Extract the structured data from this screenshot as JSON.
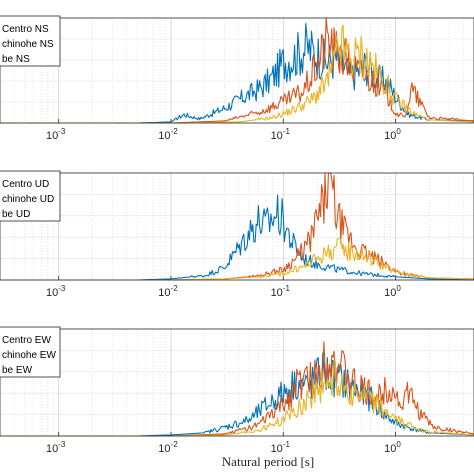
{
  "chart_data": [
    {
      "type": "line",
      "panel": "NS",
      "xscale": "log",
      "xlim": [
        0.0003,
        5
      ],
      "grid": true,
      "legend": {
        "position": "top-left",
        "entries": [
          "Centro NS",
          "chinohe NS",
          "be NS"
        ]
      },
      "xticks": [
        "10^-3",
        "10^-2",
        "10^-1",
        "10^0"
      ],
      "series": [
        {
          "name": "Centro NS",
          "color": "#0072BD",
          "x": [
            0.0003,
            0.001,
            0.005,
            0.01,
            0.013,
            0.018,
            0.03,
            0.045,
            0.06,
            0.075,
            0.09,
            0.1,
            0.13,
            0.16,
            0.2,
            0.24,
            0.3,
            0.4,
            0.55,
            0.7,
            0.85,
            1.0,
            1.3,
            2.0,
            5.0
          ],
          "y": [
            0.0,
            0.0,
            0.0,
            0.01,
            0.08,
            0.04,
            0.14,
            0.25,
            0.32,
            0.4,
            0.5,
            0.58,
            0.64,
            0.72,
            0.66,
            0.58,
            0.62,
            0.45,
            0.55,
            0.42,
            0.38,
            0.25,
            0.08,
            0.03,
            0.02
          ]
        },
        {
          "name": "chinohe NS",
          "color": "#D95319",
          "x": [
            0.0003,
            0.01,
            0.03,
            0.06,
            0.1,
            0.15,
            0.2,
            0.25,
            0.28,
            0.35,
            0.45,
            0.6,
            0.8,
            1.0,
            1.2,
            1.4,
            2.0,
            5.0
          ],
          "y": [
            0.0,
            0.0,
            0.02,
            0.1,
            0.2,
            0.3,
            0.55,
            0.82,
            0.7,
            0.62,
            0.5,
            0.42,
            0.3,
            0.1,
            0.05,
            0.32,
            0.05,
            0.02
          ]
        },
        {
          "name": "be NS",
          "color": "#EDB120",
          "x": [
            0.0003,
            0.01,
            0.04,
            0.08,
            0.12,
            0.18,
            0.25,
            0.32,
            0.4,
            0.5,
            0.6,
            0.8,
            1.0,
            1.5,
            2.0,
            5.0
          ],
          "y": [
            0.0,
            0.0,
            0.01,
            0.05,
            0.12,
            0.22,
            0.4,
            0.75,
            0.6,
            0.65,
            0.55,
            0.4,
            0.22,
            0.08,
            0.03,
            0.01
          ]
        }
      ]
    },
    {
      "type": "line",
      "panel": "UD",
      "xscale": "log",
      "xlim": [
        0.0003,
        5
      ],
      "grid": true,
      "legend": {
        "position": "top-left",
        "entries": [
          "Centro UD",
          "chinohe UD",
          "be UD"
        ]
      },
      "xticks": [
        "10^-3",
        "10^-2",
        "10^-1",
        "10^0"
      ],
      "series": [
        {
          "name": "Centro UD",
          "color": "#0072BD",
          "x": [
            0.0003,
            0.001,
            0.005,
            0.01,
            0.015,
            0.02,
            0.03,
            0.04,
            0.05,
            0.06,
            0.07,
            0.08,
            0.09,
            0.1,
            0.12,
            0.15,
            0.2,
            0.3,
            0.5,
            1.0,
            2.0,
            5.0
          ],
          "y": [
            0.0,
            0.0,
            0.0,
            0.01,
            0.03,
            0.04,
            0.12,
            0.3,
            0.45,
            0.55,
            0.5,
            0.58,
            0.62,
            0.55,
            0.35,
            0.2,
            0.15,
            0.1,
            0.06,
            0.03,
            0.01,
            0.0
          ]
        },
        {
          "name": "chinohe UD",
          "color": "#D95319",
          "x": [
            0.0003,
            0.01,
            0.03,
            0.06,
            0.1,
            0.13,
            0.17,
            0.2,
            0.23,
            0.26,
            0.3,
            0.35,
            0.45,
            0.6,
            0.8,
            1.0,
            1.3,
            2.0,
            5.0
          ],
          "y": [
            0.0,
            0.0,
            0.01,
            0.04,
            0.1,
            0.2,
            0.35,
            0.55,
            0.72,
            0.98,
            0.6,
            0.45,
            0.3,
            0.22,
            0.15,
            0.08,
            0.05,
            0.02,
            0.01
          ]
        },
        {
          "name": "be UD",
          "color": "#EDB120",
          "x": [
            0.0003,
            0.01,
            0.03,
            0.06,
            0.1,
            0.15,
            0.2,
            0.3,
            0.45,
            0.6,
            0.8,
            1.0,
            1.5,
            2.0,
            5.0
          ],
          "y": [
            0.0,
            0.0,
            0.01,
            0.03,
            0.06,
            0.12,
            0.2,
            0.3,
            0.25,
            0.2,
            0.12,
            0.08,
            0.04,
            0.02,
            0.01
          ]
        }
      ]
    },
    {
      "type": "line",
      "panel": "EW",
      "xscale": "log",
      "xlim": [
        0.0003,
        5
      ],
      "grid": true,
      "legend": {
        "position": "top-left",
        "entries": [
          "Centro EW",
          "chinohe EW",
          "be EW"
        ]
      },
      "xticks": [
        "10^-3",
        "10^-2",
        "10^-1",
        "10^0"
      ],
      "xlabel": "Natural period [s]",
      "series": [
        {
          "name": "Centro EW",
          "color": "#0072BD",
          "x": [
            0.0003,
            0.001,
            0.005,
            0.01,
            0.02,
            0.03,
            0.05,
            0.07,
            0.1,
            0.13,
            0.17,
            0.22,
            0.28,
            0.35,
            0.45,
            0.6,
            0.8,
            1.0,
            1.5,
            2.0,
            5.0
          ],
          "y": [
            0.0,
            0.0,
            0.0,
            0.01,
            0.03,
            0.08,
            0.15,
            0.28,
            0.4,
            0.5,
            0.45,
            0.6,
            0.55,
            0.5,
            0.42,
            0.35,
            0.2,
            0.12,
            0.06,
            0.03,
            0.01
          ]
        },
        {
          "name": "chinohe EW",
          "color": "#D95319",
          "x": [
            0.0003,
            0.01,
            0.03,
            0.06,
            0.1,
            0.14,
            0.2,
            0.25,
            0.3,
            0.4,
            0.55,
            0.7,
            0.9,
            1.1,
            1.3,
            1.7,
            2.2,
            5.0
          ],
          "y": [
            0.0,
            0.0,
            0.02,
            0.1,
            0.3,
            0.5,
            0.55,
            0.82,
            0.68,
            0.5,
            0.4,
            0.36,
            0.48,
            0.3,
            0.4,
            0.2,
            0.08,
            0.02
          ]
        },
        {
          "name": "be EW",
          "color": "#EDB120",
          "x": [
            0.0003,
            0.01,
            0.03,
            0.06,
            0.1,
            0.15,
            0.2,
            0.3,
            0.4,
            0.55,
            0.7,
            1.0,
            1.3,
            2.0,
            5.0
          ],
          "y": [
            0.0,
            0.0,
            0.01,
            0.05,
            0.15,
            0.3,
            0.45,
            0.55,
            0.4,
            0.35,
            0.28,
            0.15,
            0.1,
            0.04,
            0.01
          ]
        }
      ]
    }
  ]
}
